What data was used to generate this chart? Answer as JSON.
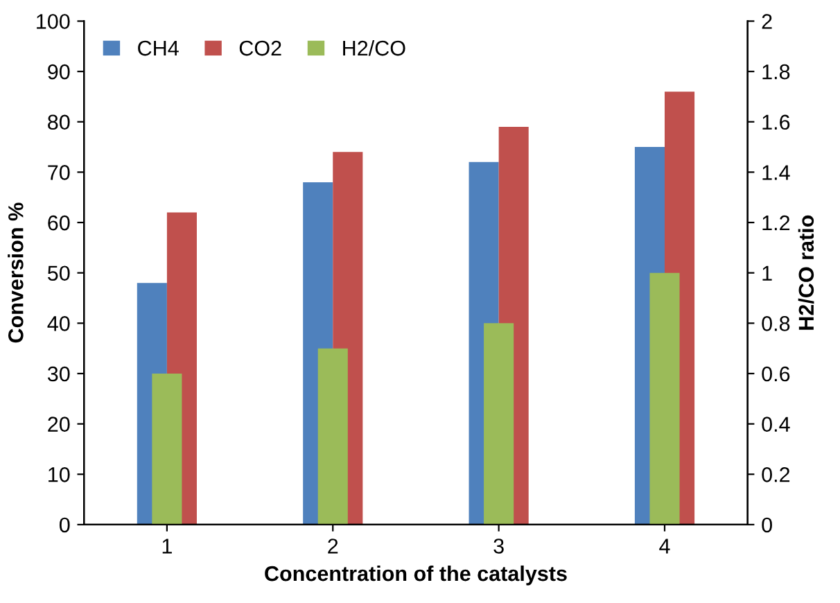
{
  "chart_data": {
    "type": "bar",
    "xlabel": "Concentration of the catalysts",
    "ylabel": "Conversion %",
    "y2label": "H2/CO ratio",
    "categories": [
      "1",
      "2",
      "3",
      "4"
    ],
    "series": [
      {
        "name": "CH4",
        "color": "#4f81bd",
        "values": [
          48,
          68,
          72,
          75
        ]
      },
      {
        "name": "CO2",
        "color": "#c0504d",
        "values": [
          62,
          74,
          79,
          86
        ]
      },
      {
        "name": "H2/CO",
        "color": "#9bbb59",
        "values": [
          0.6,
          0.7,
          0.8,
          1.0
        ],
        "axis": "y2"
      }
    ],
    "ylim": [
      0,
      100
    ],
    "yticks": [
      0,
      10,
      20,
      30,
      40,
      50,
      60,
      70,
      80,
      90,
      100
    ],
    "y2lim": [
      0,
      2
    ],
    "y2ticks": [
      0,
      0.2,
      0.4,
      0.6,
      0.8,
      1,
      1.2,
      1.4,
      1.6,
      1.8,
      2
    ],
    "grid": false,
    "legend": "top left"
  }
}
